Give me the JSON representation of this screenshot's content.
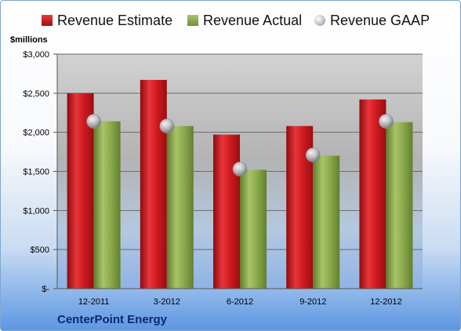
{
  "legend": {
    "estimate": "Revenue Estimate",
    "actual": "Revenue Actual",
    "gaap": "Revenue GAAP"
  },
  "units_label": "$millions",
  "company": "CenterPoint Energy",
  "colors": {
    "estimate": "#c8141a",
    "actual": "#8cae4f",
    "gaap": "#b9bec6"
  },
  "chart_data": {
    "type": "bar",
    "title": "",
    "ylabel": "$millions",
    "categories": [
      "12-2011",
      "3-2012",
      "6-2012",
      "9-2012",
      "12-2012"
    ],
    "series": [
      {
        "name": "Revenue Estimate",
        "values": [
          2500,
          2670,
          1970,
          2080,
          2420
        ]
      },
      {
        "name": "Revenue Actual",
        "values": [
          2140,
          2080,
          1520,
          1700,
          2130
        ]
      },
      {
        "name": "Revenue GAAP",
        "values": [
          2140,
          2080,
          1530,
          1710,
          2140
        ]
      }
    ],
    "ylim": [
      0,
      3000
    ],
    "yticks": [
      0,
      500,
      1000,
      1500,
      2000,
      2500,
      3000
    ],
    "ytick_labels": [
      "$-",
      "$500",
      "$1,000",
      "$1,500",
      "$2,000",
      "$2,500",
      "$3,000"
    ],
    "grid": true,
    "legend_position": "top"
  }
}
